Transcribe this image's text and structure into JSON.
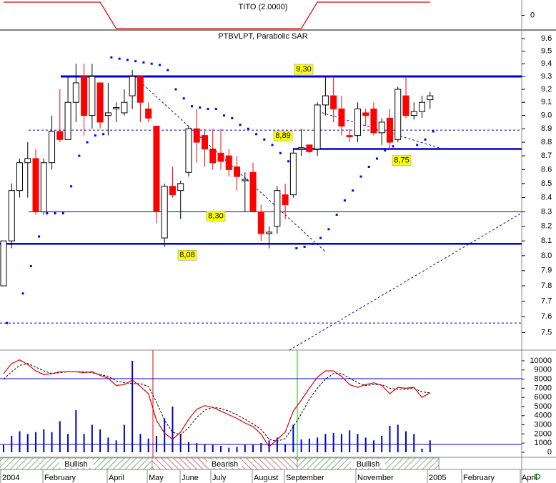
{
  "chart_data": [
    {
      "type": "line",
      "title": "TITO (2.0000)",
      "color": "#e00000",
      "values": [
        1,
        1,
        1,
        1,
        1,
        1,
        1,
        1,
        1,
        1,
        1,
        1,
        1,
        0,
        -1,
        -1,
        -1,
        -1,
        -1,
        -1,
        -1,
        -1,
        -1,
        -1,
        -1,
        -1,
        -1,
        -1,
        -1,
        -1,
        -1,
        -1,
        -1,
        -1,
        -1,
        -1,
        -1,
        -1,
        0,
        1,
        1,
        1,
        1,
        1,
        1,
        1,
        1,
        1,
        1,
        1,
        1,
        1,
        1,
        1
      ],
      "ylim": [
        -1.11,
        1.16
      ],
      "yticks": [
        0
      ]
    },
    {
      "type": "candlestick",
      "title": "PTBVLPT, Parabolic SAR",
      "log": true,
      "up_color": "#ffffff",
      "down_color": "#ff0000",
      "sar_color": "#0000ff",
      "open": [
        7.8,
        8.1,
        8.45,
        8.65,
        8.68,
        8.3,
        8.65,
        8.88,
        8.82,
        9.1,
        9.3,
        9.0,
        9.25,
        9.0,
        9.05,
        9.02,
        9.15,
        9.3,
        9.05,
        8.92,
        8.12,
        8.48,
        8.45,
        8.58,
        8.9,
        8.85,
        8.75,
        8.72,
        8.7,
        8.62,
        8.52,
        8.58,
        8.3,
        8.15,
        8.2,
        8.42,
        8.42,
        8.75,
        8.78,
        8.75,
        9.08,
        9.15,
        9.05,
        8.85,
        8.85,
        9.02,
        9.05,
        8.87,
        8.98,
        8.82,
        9.15,
        9.0,
        9.03,
        9.12
      ],
      "high": [
        8.1,
        8.5,
        8.68,
        8.8,
        8.75,
        8.68,
        9.0,
        9.2,
        9.3,
        9.4,
        9.4,
        9.4,
        9.25,
        9.25,
        9.1,
        9.2,
        9.35,
        9.3,
        9.1,
        8.92,
        8.5,
        8.62,
        8.52,
        8.92,
        9.05,
        8.9,
        8.9,
        8.9,
        8.75,
        8.7,
        8.58,
        8.65,
        8.35,
        8.2,
        8.48,
        8.5,
        8.75,
        8.9,
        8.78,
        9.1,
        9.3,
        9.3,
        9.15,
        8.9,
        9.1,
        9.05,
        9.1,
        8.98,
        9.05,
        9.22,
        9.3,
        9.1,
        9.15,
        9.18
      ],
      "low": [
        7.8,
        8.05,
        8.4,
        8.4,
        8.28,
        8.28,
        8.6,
        8.8,
        8.82,
        8.95,
        8.85,
        8.9,
        8.9,
        8.85,
        8.95,
        9.0,
        9.05,
        8.95,
        8.95,
        8.22,
        8.06,
        8.4,
        8.25,
        8.55,
        8.65,
        8.62,
        8.6,
        8.6,
        8.55,
        8.45,
        8.3,
        8.3,
        8.1,
        8.05,
        8.15,
        8.25,
        8.4,
        8.7,
        8.72,
        8.7,
        9.0,
        8.95,
        8.85,
        8.8,
        8.8,
        8.92,
        8.85,
        8.78,
        8.75,
        8.8,
        8.98,
        8.97,
        8.98,
        9.05
      ],
      "close": [
        8.1,
        8.45,
        8.65,
        8.68,
        8.3,
        8.65,
        8.88,
        8.82,
        9.1,
        9.25,
        9.0,
        9.3,
        8.95,
        9.02,
        9.06,
        9.1,
        9.3,
        9.1,
        8.98,
        8.3,
        8.48,
        8.42,
        8.5,
        8.9,
        8.8,
        8.75,
        8.65,
        8.66,
        8.6,
        8.55,
        8.53,
        8.3,
        8.15,
        8.16,
        8.45,
        8.35,
        8.72,
        8.76,
        8.73,
        9.08,
        9.15,
        9.05,
        8.92,
        8.84,
        9.05,
        9.0,
        8.87,
        8.95,
        8.8,
        9.2,
        9.0,
        9.03,
        9.1,
        9.15
      ],
      "sar": [
        7.56,
        null,
        7.75,
        7.93,
        8.13,
        8.29,
        8.29,
        8.29,
        8.48,
        8.7,
        8.8,
        8.85,
        8.86,
        9.45,
        9.44,
        9.43,
        9.42,
        9.41,
        9.4,
        9.39,
        9.35,
        9.2,
        9.13,
        9.07,
        9.06,
        9.05,
        9.05,
        9.0,
        8.98,
        8.93,
        8.9,
        8.86,
        8.82,
        8.78,
        8.72,
        8.66,
        8.05,
        8.06,
        8.08,
        8.12,
        8.18,
        8.28,
        8.38,
        8.45,
        8.55,
        8.62,
        8.68,
        8.74,
        8.77,
        null,
        null,
        8.78,
        8.82,
        8.88
      ],
      "levels": [
        {
          "value": 9.3,
          "label": "9,30"
        },
        {
          "value": 8.89,
          "label": "8,89"
        },
        {
          "value": 8.75,
          "label": "8,75"
        },
        {
          "value": 8.3,
          "label": "8,30"
        },
        {
          "value": 8.08,
          "label": "8,08"
        },
        {
          "value": 7.56
        }
      ],
      "level_color": "#0000cc",
      "ylim": [
        7.39,
        9.67
      ],
      "yticks": [
        7.5,
        7.6,
        7.7,
        7.8,
        7.9,
        {
          "value": 8,
          "label": "8.0"
        },
        8.1,
        8.2,
        8.3,
        8.4,
        8.5,
        8.6,
        8.7,
        8.8,
        8.9,
        {
          "value": 9,
          "label": "9.0"
        },
        9.1,
        9.2,
        9.3,
        9.4,
        9.5,
        9.6
      ]
    },
    {
      "type": "bar",
      "color": "#0000cc",
      "values": [
        800,
        1800,
        2300,
        2000,
        2200,
        2500,
        2200,
        3400,
        2000,
        4600,
        2000,
        3000,
        2500,
        1600,
        1300,
        3000,
        10000,
        2000,
        1500,
        1800,
        3700,
        5000,
        2000,
        1100,
        1000,
        900,
        800,
        700,
        500,
        600,
        800,
        800,
        1000,
        1300,
        1600,
        900,
        3000,
        1400,
        1500,
        1600,
        2000,
        2100,
        2000,
        2400,
        2000,
        1600,
        1300,
        1800,
        2900,
        3000,
        2300,
        2000,
        400,
        1300
      ],
      "oscillator": {
        "color": "#e00000",
        "values": [
          8600,
          9700,
          10100,
          9600,
          8900,
          8500,
          8600,
          8800,
          8800,
          8800,
          8700,
          8800,
          8400,
          8100,
          7300,
          7400,
          7900,
          7200,
          6400,
          3500,
          2100,
          1400,
          2200,
          3600,
          4700,
          5100,
          4900,
          4500,
          4100,
          3700,
          3200,
          2800,
          2000,
          600,
          1400,
          2200,
          4500,
          5700,
          7000,
          8200,
          8900,
          8900,
          8300,
          7400,
          7100,
          7400,
          7600,
          7300,
          6400,
          7100,
          7000,
          7100,
          6000,
          6500
        ]
      },
      "signal": {
        "color": "#000000",
        "values": [
          8000,
          8800,
          9500,
          9700,
          9300,
          8900,
          8600,
          8700,
          8800,
          8800,
          8800,
          8700,
          8500,
          8300,
          7800,
          7600,
          7500,
          7500,
          7200,
          5500,
          3500,
          2200,
          1900,
          2700,
          3800,
          4600,
          4900,
          4800,
          4500,
          4100,
          3600,
          3100,
          2500,
          1400,
          1200,
          1500,
          2800,
          4200,
          5800,
          7000,
          8000,
          8600,
          8600,
          8100,
          7600,
          7300,
          7400,
          7400,
          7000,
          6900,
          6900,
          7000,
          6600,
          6500
        ]
      },
      "ylim": [
        -550,
        11170
      ],
      "yticks": [
        0,
        1000,
        2000,
        3000,
        4000,
        5000,
        6000,
        7000,
        8000,
        9000,
        10000
      ]
    }
  ],
  "signals": [
    "Bullish",
    "Bearish",
    "Bullish"
  ],
  "months": [
    "2004",
    "February",
    "April",
    "May",
    "June",
    "July",
    "August",
    "September",
    "November",
    "2005",
    "February",
    "April"
  ]
}
